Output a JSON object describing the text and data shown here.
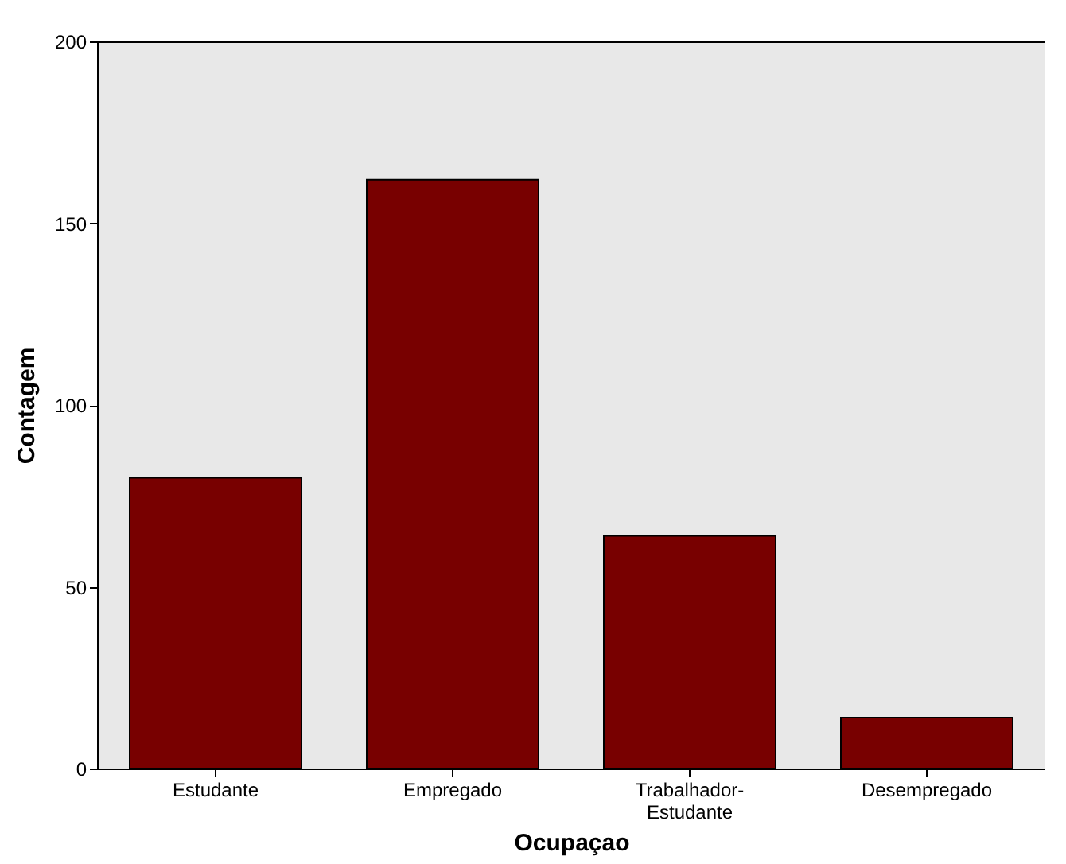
{
  "chart_data": {
    "type": "bar",
    "xlabel": "Ocupaçao",
    "ylabel": "Contagem",
    "categories": [
      "Estudante",
      "Empregado",
      "Trabalhador-Estudante",
      "Desempregado"
    ],
    "values": [
      80,
      162,
      64,
      14
    ],
    "color": "#780000",
    "ylim": [
      0,
      200
    ],
    "yticks": [
      0,
      50,
      100,
      150,
      200
    ],
    "grid": false
  }
}
